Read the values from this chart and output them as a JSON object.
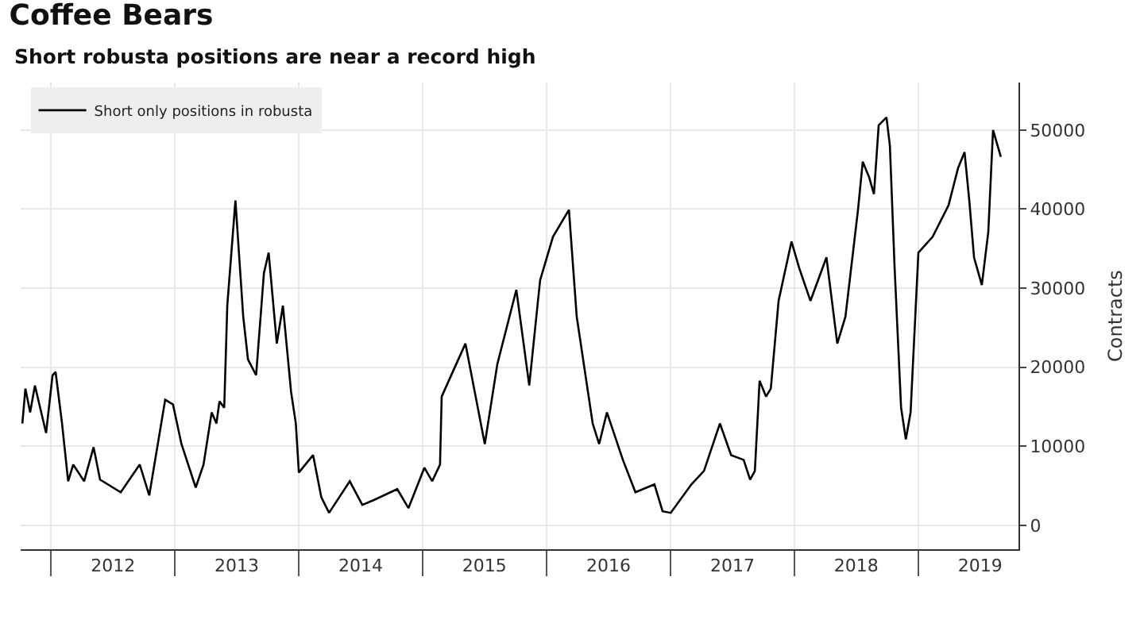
{
  "chart_data": {
    "type": "line",
    "title": "Coffee Bears",
    "subtitle": "Short robusta positions are near a record high",
    "ylabel": "Contracts",
    "x": [
      "2011-10-09",
      "2011-10-18",
      "2011-11-01",
      "2011-11-15",
      "2011-12-18",
      "2012-01-06",
      "2012-01-15",
      "2012-02-03",
      "2012-02-21",
      "2012-03-07",
      "2012-04-08",
      "2012-05-06",
      "2012-05-25",
      "2012-07-25",
      "2012-09-19",
      "2012-10-17",
      "2012-12-03",
      "2012-12-26",
      "2013-01-20",
      "2013-03-03",
      "2013-03-26",
      "2013-04-19",
      "2013-05-03",
      "2013-05-12",
      "2013-05-26",
      "2013-06-04",
      "2013-06-28",
      "2013-07-21",
      "2013-08-04",
      "2013-08-28",
      "2013-09-20",
      "2013-10-04",
      "2013-10-28",
      "2013-11-15",
      "2013-12-09",
      "2013-12-23",
      "2014-01-01",
      "2014-02-12",
      "2014-03-08",
      "2014-03-31",
      "2014-05-31",
      "2014-07-07",
      "2014-08-09",
      "2014-10-18",
      "2014-11-20",
      "2015-01-06",
      "2015-01-29",
      "2015-02-21",
      "2015-02-26",
      "2015-05-07",
      "2015-07-03",
      "2015-08-09",
      "2015-10-04",
      "2015-11-11",
      "2015-12-13",
      "2016-01-20",
      "2016-03-07",
      "2016-03-30",
      "2016-05-16",
      "2016-06-04",
      "2016-06-27",
      "2016-08-13",
      "2016-09-19",
      "2016-11-14",
      "2016-12-08",
      "2017-01-01",
      "2017-03-03",
      "2017-04-09",
      "2017-05-26",
      "2017-06-28",
      "2017-08-04",
      "2017-08-23",
      "2017-09-06",
      "2017-09-20",
      "2017-10-09",
      "2017-10-23",
      "2017-11-15",
      "2017-12-23",
      "2018-01-15",
      "2018-02-17",
      "2018-04-05",
      "2018-05-07",
      "2018-05-31",
      "2018-07-07",
      "2018-07-21",
      "2018-08-09",
      "2018-08-23",
      "2018-09-06",
      "2018-09-29",
      "2018-10-09",
      "2018-10-23",
      "2018-11-11",
      "2018-11-25",
      "2018-12-09",
      "2019-01-01",
      "2019-02-12",
      "2019-03-31",
      "2019-04-28",
      "2019-05-17",
      "2019-05-31",
      "2019-06-14",
      "2019-07-07",
      "2019-07-26",
      "2019-08-09",
      "2019-09-01"
    ],
    "series": [
      {
        "name": "Short only positions in robusta",
        "color": "#000000",
        "values": [
          12900,
          17300,
          14300,
          17700,
          11700,
          19000,
          19400,
          12900,
          5600,
          7700,
          5600,
          9900,
          5800,
          4200,
          7700,
          3800,
          15900,
          15300,
          10300,
          4800,
          7700,
          14300,
          12900,
          15700,
          14900,
          27800,
          41100,
          26400,
          21000,
          19000,
          31900,
          34500,
          23000,
          27800,
          16900,
          12900,
          6700,
          8900,
          3600,
          1600,
          5600,
          2600,
          3200,
          4600,
          2200,
          7300,
          5600,
          7700,
          16300,
          23000,
          10300,
          20400,
          29800,
          17700,
          31000,
          36500,
          39900,
          26400,
          12900,
          10300,
          14300,
          8300,
          4200,
          5200,
          1800,
          1600,
          5200,
          6900,
          12900,
          8900,
          8300,
          5800,
          6900,
          18300,
          16300,
          17300,
          28400,
          35900,
          32500,
          28400,
          33900,
          23000,
          26400,
          39900,
          46000,
          44000,
          41900,
          50600,
          51600,
          48000,
          32500,
          14900,
          10900,
          14300,
          34500,
          36500,
          40500,
          45200,
          47200,
          41100,
          33900,
          30400,
          37100,
          50000,
          46600
        ]
      }
    ],
    "xlim": [
      "2011-10-04",
      "2019-10-23"
    ],
    "xticks": [
      {
        "value": "2012-01-01",
        "label": null
      },
      {
        "value": "2012-07-02",
        "label": "2012"
      },
      {
        "value": "2013-01-01",
        "label": null
      },
      {
        "value": "2013-07-02",
        "label": "2013"
      },
      {
        "value": "2014-01-01",
        "label": null
      },
      {
        "value": "2014-07-02",
        "label": "2014"
      },
      {
        "value": "2015-01-01",
        "label": null
      },
      {
        "value": "2015-07-02",
        "label": "2015"
      },
      {
        "value": "2016-01-01",
        "label": null
      },
      {
        "value": "2016-07-02",
        "label": "2016"
      },
      {
        "value": "2017-01-01",
        "label": null
      },
      {
        "value": "2017-07-02",
        "label": "2017"
      },
      {
        "value": "2018-01-01",
        "label": null
      },
      {
        "value": "2018-07-02",
        "label": "2018"
      },
      {
        "value": "2019-01-01",
        "label": null
      },
      {
        "value": "2019-07-02",
        "label": "2019"
      }
    ],
    "ylim": [
      -3000,
      56000
    ],
    "yticks": [
      0,
      10000,
      20000,
      30000,
      40000,
      50000
    ],
    "grid": true,
    "legend": "top left",
    "line_style": "solid",
    "marker": "none"
  }
}
